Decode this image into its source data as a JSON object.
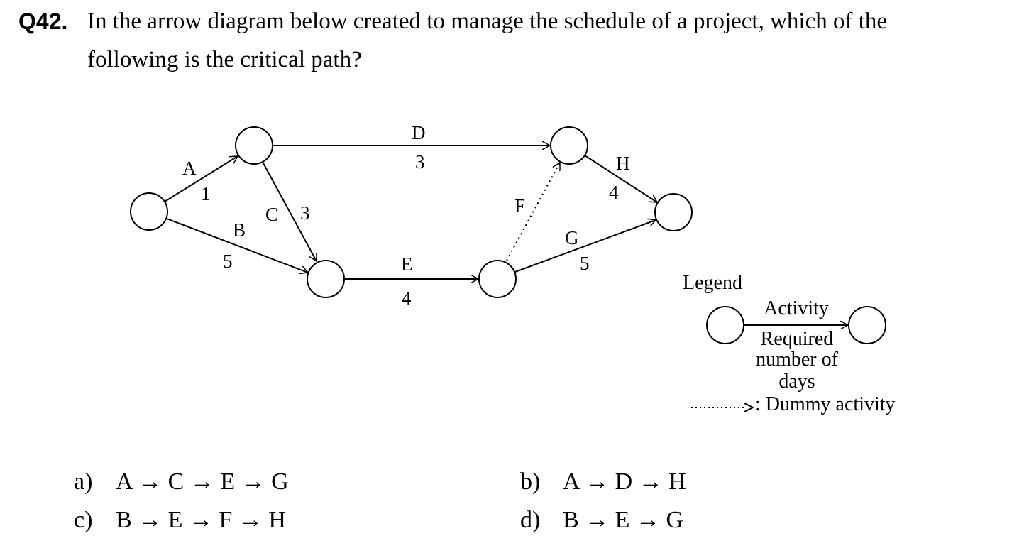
{
  "question": {
    "number": "Q42.",
    "line1": "In the arrow diagram below created to manage the schedule of a project, which of the",
    "line2": "following is the critical path?"
  },
  "diagram": {
    "activities": [
      {
        "name": "A",
        "days": "1"
      },
      {
        "name": "B",
        "days": "5"
      },
      {
        "name": "C",
        "days": "3"
      },
      {
        "name": "D",
        "days": "3"
      },
      {
        "name": "E",
        "days": "4"
      },
      {
        "name": "F",
        "days": ""
      },
      {
        "name": "G",
        "days": "5"
      },
      {
        "name": "H",
        "days": "4"
      }
    ],
    "legend": {
      "title": "Legend",
      "activity": "Activity",
      "required_line1": "Required",
      "required_line2": "number of",
      "required_line3": "days",
      "dummy": ": Dummy activity"
    }
  },
  "options": [
    {
      "label": "a)",
      "text": "A → C → E → G"
    },
    {
      "label": "b)",
      "text": "A → D → H"
    },
    {
      "label": "c)",
      "text": "B → E → F → H"
    },
    {
      "label": "d)",
      "text": "B → E → G"
    }
  ]
}
